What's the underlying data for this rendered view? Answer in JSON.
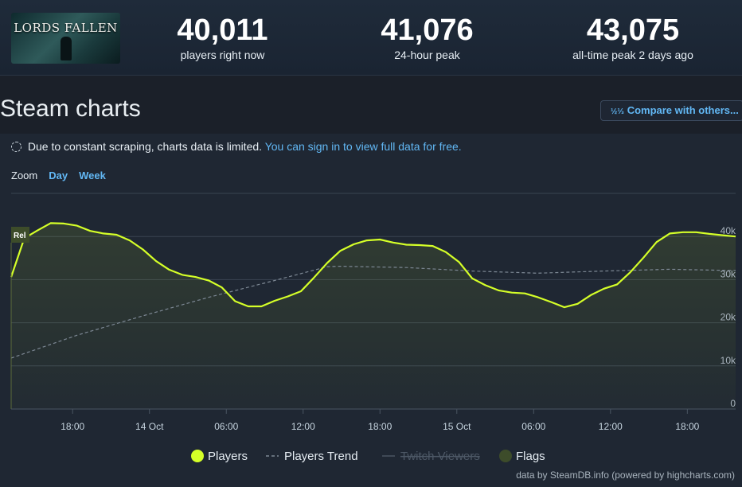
{
  "header": {
    "logo_text": "LORDS FALLEN",
    "stats": [
      {
        "value": "40,011",
        "label": "players right now"
      },
      {
        "value": "41,076",
        "label": "24-hour peak"
      },
      {
        "value": "43,075",
        "label": "all-time peak 2 days ago"
      }
    ]
  },
  "page_title": "Steam charts",
  "compare_button": {
    "icon": "fraction-icon",
    "label": "Compare with others..."
  },
  "notice": {
    "text": "Due to constant scraping, charts data is limited.",
    "link": "You can sign in to view full data for free."
  },
  "zoom": {
    "label": "Zoom",
    "options": [
      "Day",
      "Week"
    ]
  },
  "credit": "data by SteamDB.info (powered by highcharts.com)",
  "chart_data": {
    "type": "line",
    "x_ticks": [
      "18:00",
      "14 Oct",
      "06:00",
      "12:00",
      "18:00",
      "15 Oct",
      "06:00",
      "12:00",
      "18:00"
    ],
    "y_ticks": [
      "40k",
      "30k",
      "20k",
      "10k",
      "0"
    ],
    "ylim": [
      0,
      50000
    ],
    "flag_label": "Rel",
    "legend": [
      {
        "name": "Players",
        "color": "#d5ff28",
        "enabled": true
      },
      {
        "name": "Players Trend",
        "color": "#7d8894",
        "enabled": true
      },
      {
        "name": "Twitch Viewers",
        "color": "#4a5562",
        "enabled": false
      },
      {
        "name": "Flags",
        "color": "#3d4c2a",
        "enabled": true
      }
    ],
    "series": [
      {
        "name": "Players",
        "x": [
          0,
          3,
          6,
          9,
          12,
          15,
          18,
          21,
          24,
          27,
          30,
          33,
          36,
          39,
          42,
          45,
          48,
          51,
          54,
          57,
          60,
          63,
          66,
          69,
          72,
          75,
          78,
          81,
          84,
          87,
          90,
          93,
          96,
          99,
          102,
          105,
          108,
          111,
          114,
          117,
          120,
          123,
          126,
          129,
          132,
          135,
          138,
          141,
          144,
          147,
          150,
          153,
          156,
          159,
          162,
          165
        ],
        "values": [
          30600,
          39600,
          41400,
          43100,
          43000,
          42500,
          41300,
          40700,
          40400,
          39100,
          37000,
          34300,
          32300,
          31100,
          30600,
          29800,
          28200,
          25000,
          23800,
          23800,
          25100,
          26100,
          27300,
          30500,
          33900,
          36700,
          38200,
          39100,
          39300,
          38600,
          38100,
          38000,
          37800,
          36400,
          34100,
          30300,
          28700,
          27500,
          27000,
          26800,
          25900,
          24800,
          23600,
          24400,
          26400,
          27900,
          28900,
          31700,
          35100,
          38700,
          40700,
          41000,
          41000,
          40600,
          40300,
          40000
        ]
      },
      {
        "name": "Players Trend",
        "x": [
          0,
          15,
          30,
          45,
          60,
          72,
          75,
          90,
          105,
          120,
          135,
          150,
          165
        ],
        "values": [
          11800,
          17100,
          21600,
          25900,
          29800,
          33000,
          33100,
          32800,
          32000,
          31500,
          32000,
          32400,
          32100
        ]
      }
    ],
    "flags": [
      {
        "label": "Rel",
        "x": 0
      }
    ]
  }
}
